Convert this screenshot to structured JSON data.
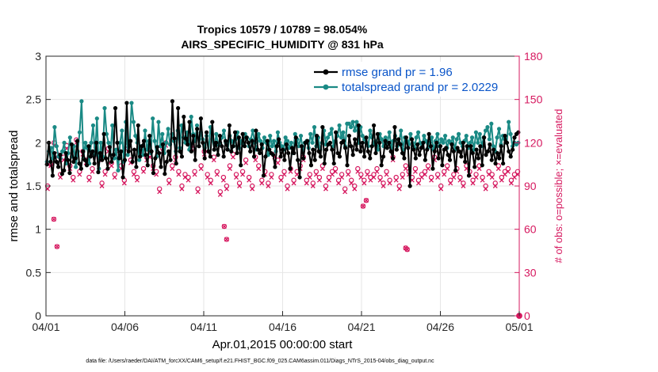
{
  "chart_data": {
    "type": "line",
    "title": "Tropics 10579 / 10789 = 98.054%",
    "subtitle": "AIRS_SPECIFIC_HUMIDITY @ 831 hPa",
    "xlabel": "Apr.01,2015 00:00:00 start",
    "ylabel": "rmse and totalspread",
    "y2label": "# of obs: o=possible; ×=evaluated",
    "xlim": [
      0,
      30
    ],
    "ylim": [
      0,
      3
    ],
    "y2lim": [
      0,
      180
    ],
    "x_tick_values": [
      0,
      5,
      10,
      15,
      20,
      25,
      30
    ],
    "x_tick_labels": [
      "04/01",
      "04/06",
      "04/11",
      "04/16",
      "04/21",
      "04/26",
      "05/01"
    ],
    "y_ticks": [
      "0",
      "0.5",
      "1",
      "1.5",
      "2",
      "2.5",
      "3"
    ],
    "y2_ticks": [
      "0",
      "30",
      "60",
      "90",
      "120",
      "150",
      "180"
    ],
    "grid": true,
    "legend": {
      "position": "top-right",
      "entries": [
        "rmse grand pr = 1.96",
        "totalspread grand pr = 2.0229"
      ]
    },
    "colors": {
      "rmse": "#000000",
      "spread": "#1a8a85",
      "obs": "#d6185f",
      "legend_text": "#0a55c9"
    },
    "rmse": [
      1.75,
      2.0,
      1.78,
      1.62,
      1.88,
      1.78,
      1.72,
      1.86,
      1.64,
      1.68,
      1.88,
      1.8,
      1.65,
      1.98,
      1.78,
      1.82,
      2.02,
      1.76,
      1.7,
      1.9,
      1.8,
      1.74,
      1.96,
      1.84,
      1.9,
      1.76,
      2.0,
      1.66,
      1.88,
      1.8,
      2.1,
      1.82,
      1.7,
      1.95,
      1.78,
      1.86,
      2.4,
      2.0,
      1.82,
      1.9,
      1.6,
      1.8,
      2.46,
      1.9,
      2.02,
      1.78,
      1.92,
      1.72,
      2.2,
      1.84,
      1.96,
      2.02,
      1.86,
      1.74,
      2.08,
      1.9,
      1.65,
      1.82,
      1.95,
      1.88,
      1.72,
      1.98,
      1.64,
      1.78,
      1.9,
      1.8,
      2.48,
      2.05,
      1.76,
      2.4,
      1.9,
      1.84,
      2.3,
      2.05,
      1.98,
      2.24,
      1.9,
      2.08,
      1.8,
      2.16,
      1.96,
      2.28,
      2.0,
      1.82,
      2.12,
      1.9,
      1.84,
      2.24,
      1.92,
      2.0,
      1.86,
      2.08,
      1.96,
      1.84,
      2.02,
      1.92,
      2.2,
      1.9,
      1.96,
      2.12,
      1.88,
      2.06,
      1.74,
      2.1,
      1.96,
      2.06,
      2.0,
      1.9,
      2.02,
      1.84,
      2.14,
      1.92,
      1.88,
      1.98,
      1.62,
      1.84,
      2.02,
      1.92,
      1.88,
      1.86,
      1.72,
      1.96,
      2.04,
      1.84,
      1.92,
      1.8,
      1.98,
      1.88,
      1.7,
      1.94,
      1.88,
      2.06,
      1.8,
      1.6,
      1.96,
      1.82,
      2.0,
      2.02,
      1.88,
      1.74,
      1.92,
      1.8,
      2.08,
      1.9,
      1.84,
      2.18,
      1.76,
      1.92,
      1.98,
      2.0,
      1.92,
      1.76,
      2.12,
      1.88,
      1.84,
      2.0,
      2.02,
      1.94,
      1.74,
      2.08,
      1.96,
      1.86,
      2.04,
      1.92,
      2.2,
      1.9,
      2.0,
      1.84,
      2.06,
      1.9,
      1.82,
      1.96,
      2.2,
      1.88,
      2.1,
      2.0,
      1.74,
      1.84,
      2.02,
      1.94,
      2.0,
      1.9,
      1.82,
      2.18,
      1.92,
      2.04,
      1.98,
      1.88,
      1.82,
      2.06,
      1.94,
      1.5,
      2.04,
      1.92,
      1.82,
      1.98,
      1.86,
      1.94,
      2.0,
      1.8,
      1.92,
      2.1,
      1.96,
      1.7,
      1.9,
      2.0,
      1.82,
      1.96,
      1.74,
      1.92,
      1.94,
      1.86,
      1.8,
      1.98,
      1.9,
      1.68,
      1.94,
      1.9,
      1.84,
      2.0,
      1.78,
      1.96,
      1.62,
      1.96,
      1.88,
      1.72,
      1.92,
      1.82,
      1.96,
      1.74,
      2.06,
      1.86,
      1.9,
      1.98,
      1.8,
      1.92,
      1.76,
      1.88,
      1.82,
      1.96,
      1.76,
      2.08,
      2.0,
      1.9,
      1.84,
      1.92,
      2.06,
      2.1,
      2.12
    ],
    "totalspread": [
      1.78,
      1.9,
      1.94,
      1.82,
      2.18,
      1.96,
      1.84,
      1.82,
      1.9,
      2.0,
      1.76,
      1.88,
      2.06,
      1.84,
      1.96,
      1.72,
      1.9,
      2.12,
      2.48,
      1.82,
      2.0,
      1.94,
      1.76,
      2.0,
      2.2,
      1.86,
      2.28,
      1.7,
      2.0,
      1.84,
      2.4,
      2.1,
      2.0,
      1.86,
      2.2,
      1.82,
      1.92,
      1.68,
      2.0,
      2.14,
      1.78,
      2.24,
      1.86,
      1.98,
      2.46,
      2.24,
      2.08,
      2.0,
      1.8,
      1.96,
      1.86,
      2.14,
      1.92,
      2.02,
      1.88,
      2.28,
      2.02,
      1.84,
      2.24,
      1.96,
      2.1,
      1.88,
      2.0,
      2.16,
      1.98,
      2.1,
      2.02,
      1.9,
      2.14,
      1.94,
      2.2,
      2.06,
      2.0,
      2.12,
      1.92,
      2.3,
      2.1,
      2.02,
      2.2,
      1.96,
      2.12,
      2.04,
      1.94,
      2.08,
      1.9,
      2.18,
      2.04,
      1.92,
      2.1,
      1.98,
      2.0,
      2.06,
      2.14,
      2.0,
      1.92,
      2.08,
      2.02,
      1.96,
      2.04,
      2.12,
      1.94,
      2.02,
      1.98,
      2.1,
      2.06,
      1.96,
      2.04,
      2.14,
      2.0,
      1.92,
      2.1,
      2.02,
      1.94,
      2.06,
      2.0,
      1.86,
      2.08,
      1.96,
      2.02,
      1.9,
      2.12,
      2.0,
      1.96,
      1.92,
      2.06,
      2.02,
      1.94,
      2.0,
      1.88,
      2.1,
      2.04,
      1.96,
      2.08,
      1.9,
      2.0,
      2.02,
      1.94,
      2.1,
      2.0,
      2.18,
      1.96,
      2.06,
      1.92,
      2.0,
      2.14,
      1.98,
      2.06,
      2.1,
      2.16,
      1.96,
      2.02,
      2.08,
      2.2,
      2.06,
      2.12,
      1.96,
      2.22,
      2.22,
      2.18,
      2.24,
      2.14,
      2.24,
      2.0,
      2.18,
      2.08,
      2.04,
      2.0,
      1.96,
      2.14,
      2.06,
      1.98,
      2.02,
      1.92,
      2.1,
      2.04,
      1.96,
      2.06,
      2.0,
      2.12,
      1.94,
      2.02,
      2.08,
      1.96,
      2.0,
      2.14,
      1.92,
      2.06,
      2.02,
      1.98,
      2.1,
      2.0,
      1.94,
      2.06,
      2.12,
      2.0,
      1.96,
      2.08,
      2.02,
      1.94,
      2.0,
      2.06,
      1.92,
      2.02,
      2.1,
      1.96,
      2.04,
      2.0,
      2.08,
      1.94,
      2.02,
      2.0,
      2.06,
      1.92,
      2.04,
      2.1,
      2.0,
      1.96,
      2.02,
      2.08,
      1.94,
      2.0,
      2.06,
      1.92,
      2.12,
      2.0,
      2.1,
      1.96,
      2.06,
      2.14,
      2.18,
      2.04,
      2.22,
      1.96,
      1.9,
      2.06,
      2.16,
      1.98,
      2.08,
      2.04,
      2.0,
      2.24,
      2.1,
      1.96,
      2.0,
      1.98,
      2.0
    ],
    "obs_possible": [
      90,
      105,
      120,
      112,
      98,
      110,
      118,
      104,
      96,
      122,
      100,
      114,
      108,
      96,
      102,
      120,
      110,
      92,
      100,
      116,
      106,
      98,
      112,
      104,
      94,
      118,
      108,
      100,
      96,
      114,
      102,
      110,
      112,
      104,
      100,
      88,
      116,
      120,
      94,
      104,
      110,
      100,
      90,
      98,
      96,
      118,
      100,
      88,
      104,
      114,
      98,
      94,
      110,
      100,
      86,
      96,
      90,
      104,
      112,
      98,
      92,
      100,
      108,
      96,
      90,
      110,
      104,
      94,
      100,
      92,
      98,
      112,
      108,
      96,
      100,
      90,
      102,
      94,
      100,
      104,
      110,
      94,
      98,
      92,
      100,
      96,
      104,
      90,
      96,
      100,
      102,
      94,
      98,
      88,
      100,
      94,
      90,
      102,
      98,
      94,
      100,
      96,
      98,
      102,
      96,
      92,
      100,
      94,
      110,
      96,
      90,
      98,
      104,
      100,
      96,
      102,
      94,
      98,
      100,
      104,
      96,
      110,
      98,
      90,
      100,
      104,
      94,
      98,
      102,
      96,
      92,
      104,
      100,
      94,
      98,
      104,
      96,
      90,
      100,
      98,
      92,
      104,
      96,
      100,
      102,
      94,
      98,
      100
    ],
    "obs_evaluated": [
      88,
      104,
      118,
      110,
      96,
      108,
      116,
      102,
      94,
      120,
      98,
      112,
      106,
      94,
      100,
      118,
      108,
      90,
      98,
      114,
      104,
      96,
      110,
      102,
      92,
      116,
      106,
      98,
      94,
      112,
      100,
      108,
      110,
      102,
      98,
      86,
      114,
      118,
      92,
      102,
      108,
      98,
      88,
      96,
      94,
      116,
      98,
      86,
      102,
      112,
      96,
      92,
      108,
      98,
      84,
      94,
      88,
      102,
      110,
      96,
      90,
      98,
      106,
      94,
      88,
      108,
      102,
      92,
      98,
      90,
      96,
      110,
      106,
      94,
      98,
      88,
      100,
      92,
      98,
      102,
      108,
      92,
      96,
      90,
      98,
      94,
      102,
      88,
      94,
      98,
      100,
      92,
      96,
      86,
      98,
      92,
      88,
      100,
      96,
      92,
      98,
      94,
      96,
      100,
      94,
      90,
      98,
      92,
      108,
      94,
      88,
      96,
      102,
      98,
      94,
      100,
      92,
      96,
      98,
      102,
      94,
      108,
      96,
      88,
      98,
      102,
      92,
      96,
      100,
      94,
      90,
      102,
      98,
      92,
      96,
      102,
      94,
      88,
      98,
      96,
      90,
      102,
      94,
      98,
      100,
      92,
      96,
      98
    ],
    "obs_drops": [
      [
        0.5,
        67
      ],
      [
        0.7,
        48
      ],
      [
        11.3,
        62
      ],
      [
        11.45,
        53
      ],
      [
        22.8,
        47
      ],
      [
        22.9,
        46
      ],
      [
        20.1,
        76
      ],
      [
        20.3,
        80
      ]
    ]
  },
  "footer": "data file: /Users/raeder/DAI/ATM_forcXX/CAM6_setup/f.e21.FHIST_BGC.f09_025.CAM6assim.011/Diags_NTrS_2015-04/obs_diag_output.nc"
}
